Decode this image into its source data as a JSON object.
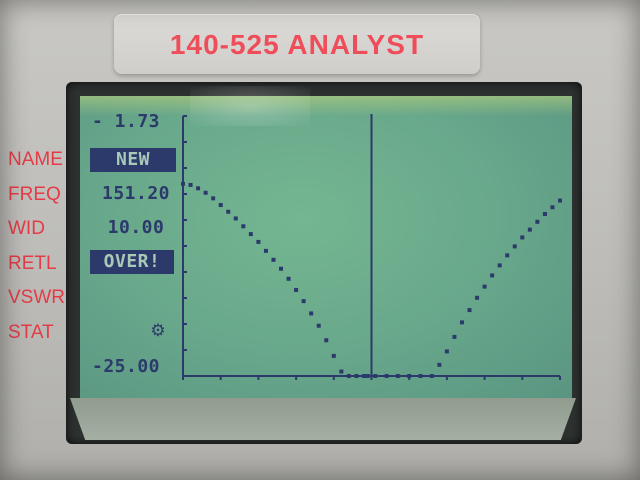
{
  "device": {
    "brand": "140-525 ANALYST"
  },
  "side_labels": [
    "NAME",
    "FREQ",
    "WID",
    "RETL",
    "VSWR",
    "STAT"
  ],
  "lcd": {
    "y_top": "- 1.73",
    "name_value": "NEW",
    "freq_value": "151.20",
    "width_value": "10.00",
    "mode_value": "OVER!",
    "y_bottom": "-25.00",
    "stat_icon": "gear-icon"
  },
  "colors": {
    "brand_red": "#ef4d5a",
    "label_red": "#e53b47",
    "lcd_green": "#6aaa8c",
    "lcd_ink": "#2c3a6b"
  },
  "chart_data": {
    "type": "line",
    "ylim": [
      -25.0,
      -1.73
    ],
    "xlim": [
      146.2,
      156.2
    ],
    "marker_x": 151.2,
    "series": [
      {
        "x": [
          146.2,
          146.4,
          146.6,
          146.8,
          147.0,
          147.2,
          147.4,
          147.6,
          147.8,
          148.0,
          148.2,
          148.4,
          148.6,
          148.8,
          149.0,
          149.2,
          149.4,
          149.6,
          149.8,
          150.0,
          150.2,
          150.4,
          150.6,
          150.8,
          151.0,
          151.1
        ],
        "values": [
          -7.8,
          -7.9,
          -8.2,
          -8.6,
          -9.1,
          -9.7,
          -10.3,
          -10.9,
          -11.6,
          -12.3,
          -13.0,
          -13.8,
          -14.6,
          -15.4,
          -16.3,
          -17.3,
          -18.3,
          -19.4,
          -20.5,
          -21.8,
          -23.2,
          -24.6,
          -25.0,
          -25.0,
          -25.0,
          -25.0
        ]
      },
      {
        "x": [
          151.3,
          151.6,
          151.9,
          152.2,
          152.5,
          152.8,
          153.0,
          153.2,
          153.4,
          153.6,
          153.8,
          154.0,
          154.2,
          154.4,
          154.6,
          154.8,
          155.0,
          155.2,
          155.4,
          155.6,
          155.8,
          156.0,
          156.2
        ],
        "values": [
          -25.0,
          -25.0,
          -25.0,
          -25.0,
          -25.0,
          -25.0,
          -24.0,
          -22.8,
          -21.5,
          -20.2,
          -19.1,
          -18.0,
          -17.0,
          -16.0,
          -15.1,
          -14.2,
          -13.4,
          -12.6,
          -11.9,
          -11.2,
          -10.5,
          -9.9,
          -9.3
        ]
      }
    ]
  }
}
